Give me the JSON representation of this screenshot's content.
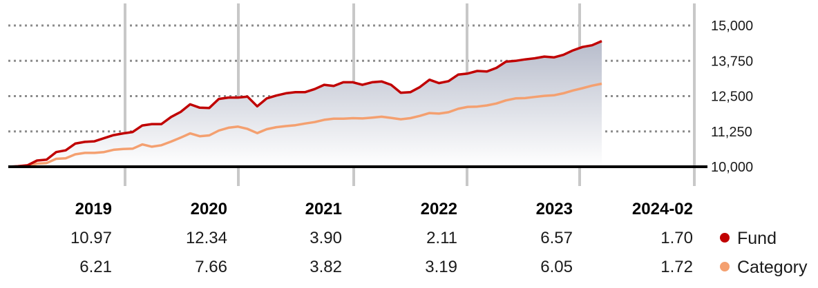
{
  "chart_data": {
    "type": "area",
    "y_ticks": [
      10000,
      11250,
      12500,
      13750,
      15000
    ],
    "y_tick_labels": [
      "10,000",
      "11,250",
      "12,500",
      "13,750",
      "15,000"
    ],
    "ylim": [
      10000,
      15000
    ],
    "xlim": [
      2019.0,
      2024.167
    ],
    "grid": "horizontal dotted, vertical year separators",
    "series": [
      {
        "name": "Fund",
        "color": "#c00000",
        "points": [
          [
            2019.0,
            10000
          ],
          [
            2019.083,
            10020
          ],
          [
            2019.167,
            10050
          ],
          [
            2019.25,
            10220
          ],
          [
            2019.333,
            10250
          ],
          [
            2019.417,
            10520
          ],
          [
            2019.5,
            10580
          ],
          [
            2019.583,
            10820
          ],
          [
            2019.667,
            10880
          ],
          [
            2019.75,
            10900
          ],
          [
            2019.833,
            11010
          ],
          [
            2019.917,
            11120
          ],
          [
            2020.0,
            11180
          ],
          [
            2020.083,
            11230
          ],
          [
            2020.167,
            11460
          ],
          [
            2020.25,
            11510
          ],
          [
            2020.333,
            11510
          ],
          [
            2020.417,
            11760
          ],
          [
            2020.5,
            11940
          ],
          [
            2020.583,
            12210
          ],
          [
            2020.667,
            12090
          ],
          [
            2020.75,
            12080
          ],
          [
            2020.833,
            12400
          ],
          [
            2020.917,
            12450
          ],
          [
            2021.0,
            12450
          ],
          [
            2021.083,
            12480
          ],
          [
            2021.167,
            12140
          ],
          [
            2021.25,
            12420
          ],
          [
            2021.333,
            12520
          ],
          [
            2021.417,
            12600
          ],
          [
            2021.5,
            12640
          ],
          [
            2021.583,
            12640
          ],
          [
            2021.667,
            12750
          ],
          [
            2021.75,
            12900
          ],
          [
            2021.833,
            12860
          ],
          [
            2021.917,
            12990
          ],
          [
            2022.0,
            12990
          ],
          [
            2022.083,
            12900
          ],
          [
            2022.167,
            12990
          ],
          [
            2022.25,
            13020
          ],
          [
            2022.333,
            12900
          ],
          [
            2022.417,
            12620
          ],
          [
            2022.5,
            12640
          ],
          [
            2022.583,
            12820
          ],
          [
            2022.667,
            13080
          ],
          [
            2022.75,
            12960
          ],
          [
            2022.833,
            13030
          ],
          [
            2022.917,
            13260
          ],
          [
            2023.0,
            13300
          ],
          [
            2023.083,
            13390
          ],
          [
            2023.167,
            13370
          ],
          [
            2023.25,
            13500
          ],
          [
            2023.333,
            13720
          ],
          [
            2023.417,
            13750
          ],
          [
            2023.5,
            13800
          ],
          [
            2023.583,
            13840
          ],
          [
            2023.667,
            13900
          ],
          [
            2023.75,
            13870
          ],
          [
            2023.833,
            13960
          ],
          [
            2023.917,
            14120
          ],
          [
            2024.0,
            14240
          ],
          [
            2024.083,
            14300
          ],
          [
            2024.167,
            14450
          ]
        ]
      },
      {
        "name": "Category",
        "color": "#f4a070",
        "points": [
          [
            2019.0,
            10000
          ],
          [
            2019.083,
            10010
          ],
          [
            2019.167,
            10040
          ],
          [
            2019.25,
            10110
          ],
          [
            2019.333,
            10130
          ],
          [
            2019.417,
            10280
          ],
          [
            2019.5,
            10300
          ],
          [
            2019.583,
            10440
          ],
          [
            2019.667,
            10490
          ],
          [
            2019.75,
            10490
          ],
          [
            2019.833,
            10520
          ],
          [
            2019.917,
            10600
          ],
          [
            2020.0,
            10630
          ],
          [
            2020.083,
            10640
          ],
          [
            2020.167,
            10790
          ],
          [
            2020.25,
            10710
          ],
          [
            2020.333,
            10760
          ],
          [
            2020.417,
            10890
          ],
          [
            2020.5,
            11030
          ],
          [
            2020.583,
            11180
          ],
          [
            2020.667,
            11080
          ],
          [
            2020.75,
            11110
          ],
          [
            2020.833,
            11280
          ],
          [
            2020.917,
            11380
          ],
          [
            2021.0,
            11420
          ],
          [
            2021.083,
            11340
          ],
          [
            2021.167,
            11190
          ],
          [
            2021.25,
            11330
          ],
          [
            2021.333,
            11400
          ],
          [
            2021.417,
            11440
          ],
          [
            2021.5,
            11470
          ],
          [
            2021.583,
            11530
          ],
          [
            2021.667,
            11580
          ],
          [
            2021.75,
            11660
          ],
          [
            2021.833,
            11700
          ],
          [
            2021.917,
            11700
          ],
          [
            2022.0,
            11720
          ],
          [
            2022.083,
            11710
          ],
          [
            2022.167,
            11740
          ],
          [
            2022.25,
            11770
          ],
          [
            2022.333,
            11730
          ],
          [
            2022.417,
            11680
          ],
          [
            2022.5,
            11720
          ],
          [
            2022.583,
            11800
          ],
          [
            2022.667,
            11900
          ],
          [
            2022.75,
            11880
          ],
          [
            2022.833,
            11930
          ],
          [
            2022.917,
            12050
          ],
          [
            2023.0,
            12120
          ],
          [
            2023.083,
            12130
          ],
          [
            2023.167,
            12170
          ],
          [
            2023.25,
            12240
          ],
          [
            2023.333,
            12350
          ],
          [
            2023.417,
            12420
          ],
          [
            2023.5,
            12430
          ],
          [
            2023.583,
            12470
          ],
          [
            2023.667,
            12510
          ],
          [
            2023.75,
            12530
          ],
          [
            2023.833,
            12600
          ],
          [
            2023.917,
            12700
          ],
          [
            2024.0,
            12780
          ],
          [
            2024.083,
            12870
          ],
          [
            2024.167,
            12940
          ]
        ]
      }
    ],
    "table": {
      "years": [
        "2019",
        "2020",
        "2021",
        "2022",
        "2023",
        "2024-02"
      ],
      "rows": [
        {
          "name": "Fund",
          "color": "#c00000",
          "values": [
            "10.97",
            "12.34",
            "3.90",
            "2.11",
            "6.57",
            "1.70"
          ]
        },
        {
          "name": "Category",
          "color": "#f4a070",
          "values": [
            "6.21",
            "7.66",
            "3.82",
            "3.19",
            "6.05",
            "1.72"
          ]
        }
      ]
    },
    "legend": "right of table rows"
  }
}
